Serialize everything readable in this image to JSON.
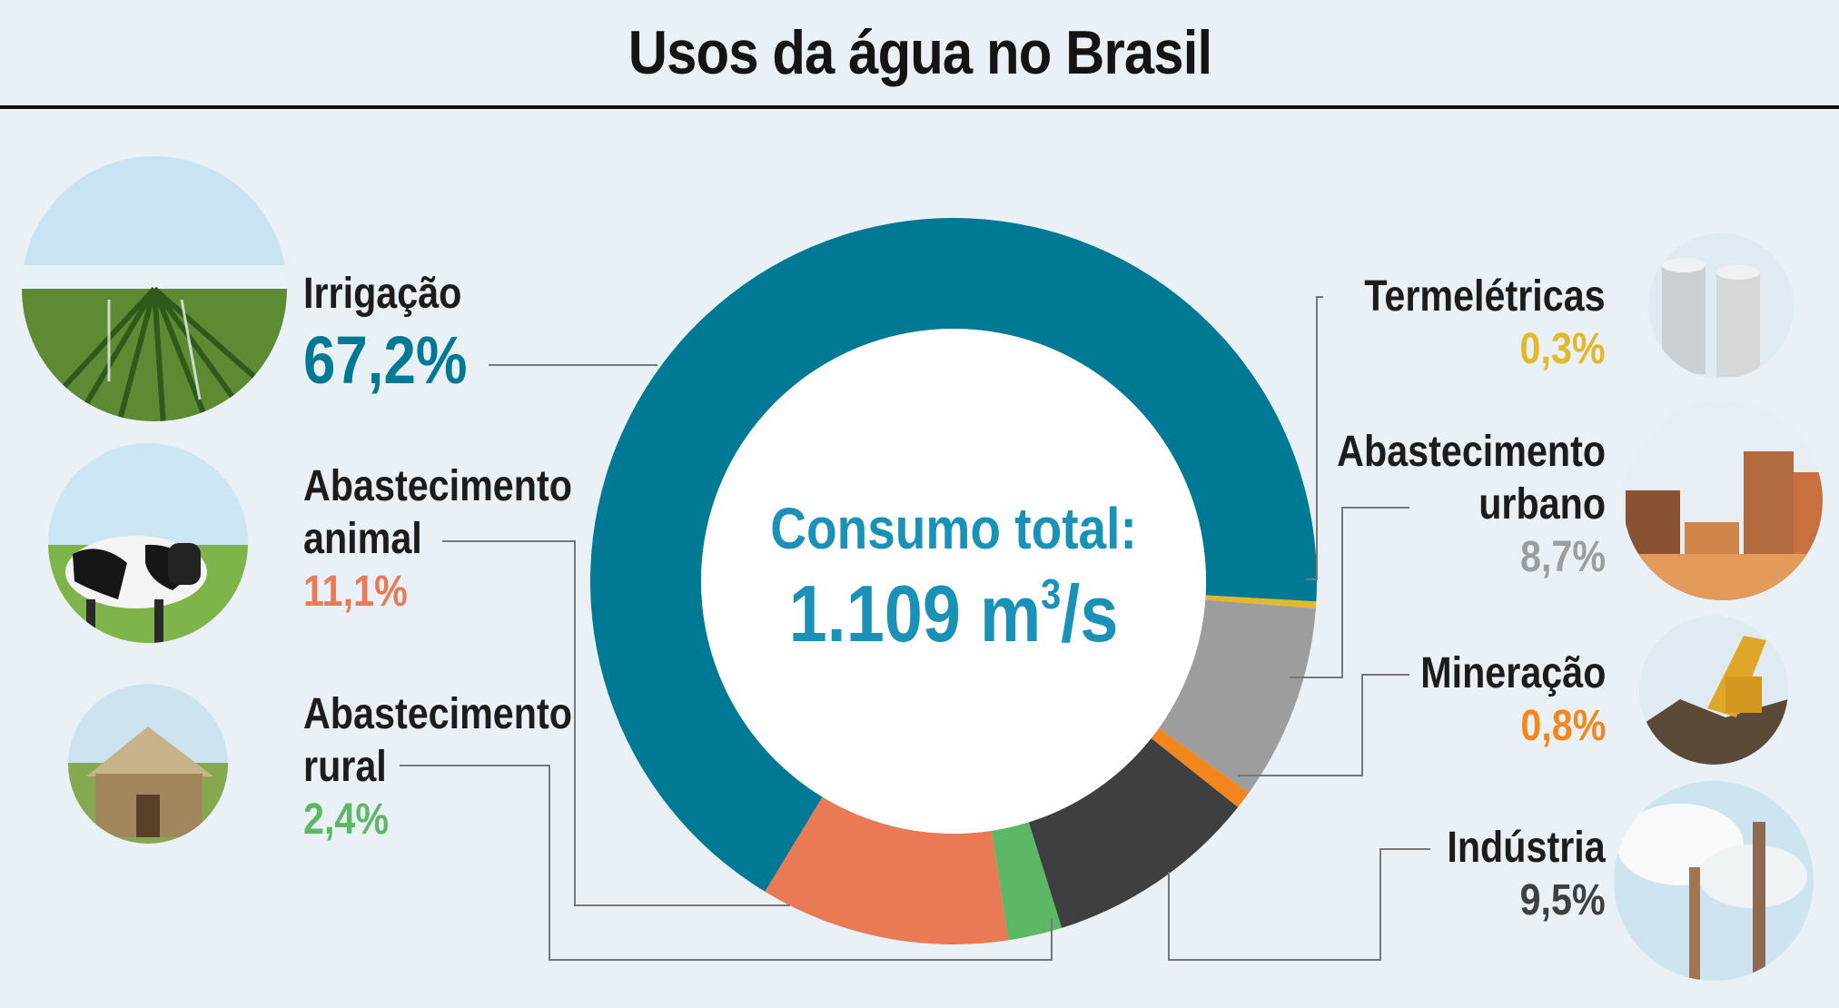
{
  "title": "Usos da água no Brasil",
  "center": {
    "label": "Consumo total:",
    "value": "1.109 m",
    "unit_sup": "3",
    "unit_tail": "/s"
  },
  "chart_data": {
    "type": "pie",
    "style": "donut",
    "title": "Usos da água no Brasil",
    "total": "1.109 m³/s",
    "slices": [
      {
        "key": "irrigacao",
        "name": "Irrigação",
        "value": 67.2,
        "label": "67,2%",
        "color": "#007a94"
      },
      {
        "key": "termeletricas",
        "name": "Termelétricas",
        "value": 0.3,
        "label": "0,3%",
        "color": "#e3b92a"
      },
      {
        "key": "urbano",
        "name": "Abastecimento urbano",
        "value": 8.7,
        "label": "8,7%",
        "color": "#9b9d9f"
      },
      {
        "key": "mineracao",
        "name": "Mineração",
        "value": 0.8,
        "label": "0,8%",
        "color": "#f3871d"
      },
      {
        "key": "industria",
        "name": "Indústria",
        "value": 9.5,
        "label": "9,5%",
        "color": "#3e3f41"
      },
      {
        "key": "rural",
        "name": "Abastecimento rural",
        "value": 2.4,
        "label": "2,4%",
        "color": "#5db865"
      },
      {
        "key": "animal",
        "name": "Abastecimento animal",
        "value": 11.1,
        "label": "11,1%",
        "color": "#e97a55"
      }
    ]
  },
  "labels": {
    "irrigacao": {
      "name": "Irrigação",
      "value": "67,2%"
    },
    "animal": {
      "name_line1": "Abastecimento",
      "name_line2": "animal",
      "value": "11,1%"
    },
    "rural": {
      "name_line1": "Abastecimento",
      "name_line2": "rural",
      "value": "2,4%"
    },
    "termeletricas": {
      "name": "Termelétricas",
      "value": "0,3%"
    },
    "urbano": {
      "name_line1": "Abastecimento",
      "name_line2": "urbano",
      "value": "8,7%"
    },
    "mineracao": {
      "name": "Mineração",
      "value": "0,8%"
    },
    "industria": {
      "name": "Indústria",
      "value": "9,5%"
    }
  },
  "colors": {
    "background": "#e9f1f6",
    "irrigacao": "#007a94",
    "animal": "#e97a55",
    "rural": "#5db865",
    "termeletricas": "#e3b92a",
    "urbano": "#9b9d9f",
    "mineracao": "#f3871d",
    "industria": "#3e3f41",
    "center_text": "#1a92b8"
  }
}
